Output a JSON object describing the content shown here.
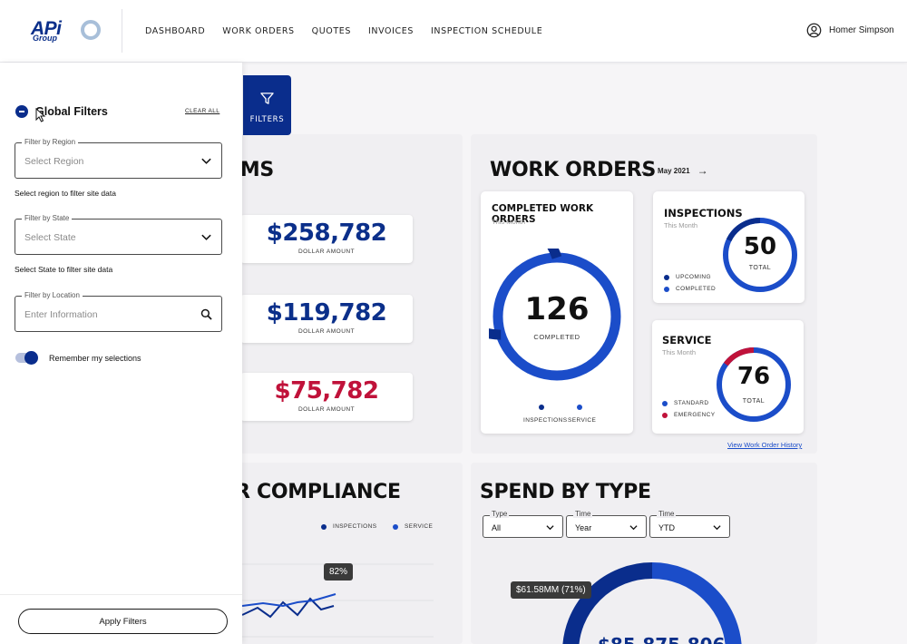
{
  "brand": {
    "logo_text": "APi",
    "logo_sub": "Group"
  },
  "nav": {
    "items": [
      "DASHBOARD",
      "WORK ORDERS",
      "QUOTES",
      "INVOICES",
      "INSPECTION SCHEDULE"
    ],
    "user_name": "Homer Simpson"
  },
  "filters_tab": {
    "label": "FILTERS"
  },
  "items_card": {
    "title_partial": "EMS",
    "amounts": [
      {
        "value": "$258,782",
        "label": "DOLLAR AMOUNT",
        "color": "#0b2f8a"
      },
      {
        "value": "$119,782",
        "label": "DOLLAR AMOUNT",
        "color": "#0b2f8a"
      },
      {
        "value": "$75,782",
        "label": "DOLLAR AMOUNT",
        "color": "#c0123a"
      }
    ]
  },
  "work_orders": {
    "title": "WORK ORDERS",
    "month": "May 2021",
    "completed": {
      "title": "COMPLETED WORK ORDERS",
      "subtitle": "This Month",
      "value": "126",
      "value_label": "COMPLETED",
      "legend": [
        "INSPECTIONS",
        "SERVICE"
      ]
    },
    "inspections": {
      "title": "INSPECTIONS",
      "subtitle": "This Month",
      "value": "50",
      "value_label": "TOTAL",
      "legend": [
        "UPCOMING",
        "COMPLETED"
      ]
    },
    "service": {
      "title": "SERVICE",
      "subtitle": "This Month",
      "value": "76",
      "value_label": "TOTAL",
      "legend": [
        "STANDARD",
        "EMERGENCY"
      ]
    },
    "history_link": "View Work Order History"
  },
  "compliance": {
    "title_partial": "R COMPLIANCE",
    "legend": [
      "INSPECTIONS",
      "SERVICE"
    ],
    "tooltip": "82%"
  },
  "spend": {
    "title": "SPEND BY TYPE",
    "selects": [
      {
        "label": "Type",
        "value": "All"
      },
      {
        "label": "Time",
        "value": "Year"
      },
      {
        "label": "Time",
        "value": "YTD"
      }
    ],
    "tooltip": "$61.58MM (71%)",
    "center_value_partial": "$85,875,806"
  },
  "panel": {
    "title": "Global Filters",
    "clear_all": "CLEAR ALL",
    "region": {
      "label": "Filter by Region",
      "placeholder": "Select Region",
      "helper": "Select region to filter site data"
    },
    "state": {
      "label": "Filter by State",
      "placeholder": "Select State",
      "helper": "Select State to filter site data"
    },
    "location": {
      "label": "Filter by Location",
      "placeholder": "Enter Information"
    },
    "remember_label": "Remember my selections",
    "apply_label": "Apply Filters"
  },
  "colors": {
    "navy": "#0a2d8c",
    "blue": "#1b4dc9",
    "red": "#c0123a",
    "accent_light": "#b6c0dd"
  },
  "icons": [
    "user-circle-icon",
    "filter-funnel-icon",
    "chevron-down-icon",
    "search-icon",
    "arrow-left-icon",
    "arrow-right-icon",
    "minus-circle-icon"
  ]
}
